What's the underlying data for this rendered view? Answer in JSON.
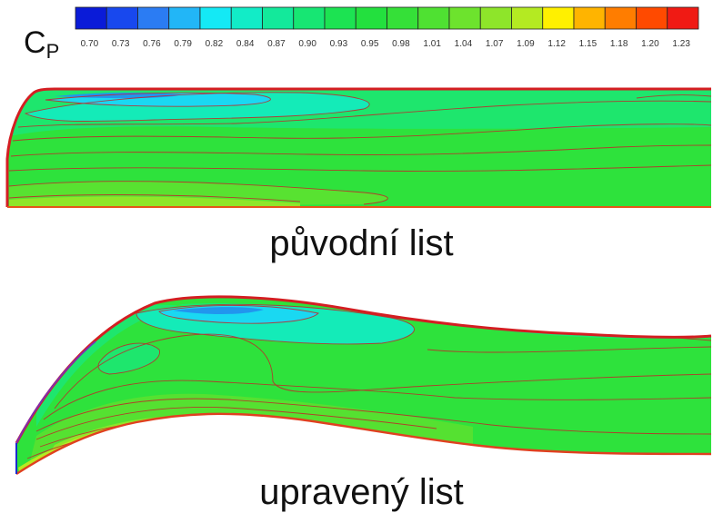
{
  "legend": {
    "symbol": "C",
    "symbol_sub": "P",
    "ticks": [
      "0.70",
      "0.73",
      "0.76",
      "0.79",
      "0.82",
      "0.84",
      "0.87",
      "0.90",
      "0.93",
      "0.95",
      "0.98",
      "1.01",
      "1.04",
      "1.07",
      "1.09",
      "1.12",
      "1.15",
      "1.18",
      "1.20",
      "1.23"
    ],
    "colors": [
      "#0a1bd8",
      "#1848ee",
      "#2b7cf3",
      "#22b6f7",
      "#14e9f5",
      "#12ecc7",
      "#13e99b",
      "#17e673",
      "#1ce352",
      "#23e03e",
      "#35e038",
      "#4fe132",
      "#6de32d",
      "#8ee52a",
      "#b4ea22",
      "#fff000",
      "#ffb400",
      "#ff7d00",
      "#ff4a00",
      "#f01a14"
    ]
  },
  "panels": [
    {
      "caption": "původní list"
    },
    {
      "caption": "upravený list"
    }
  ]
}
